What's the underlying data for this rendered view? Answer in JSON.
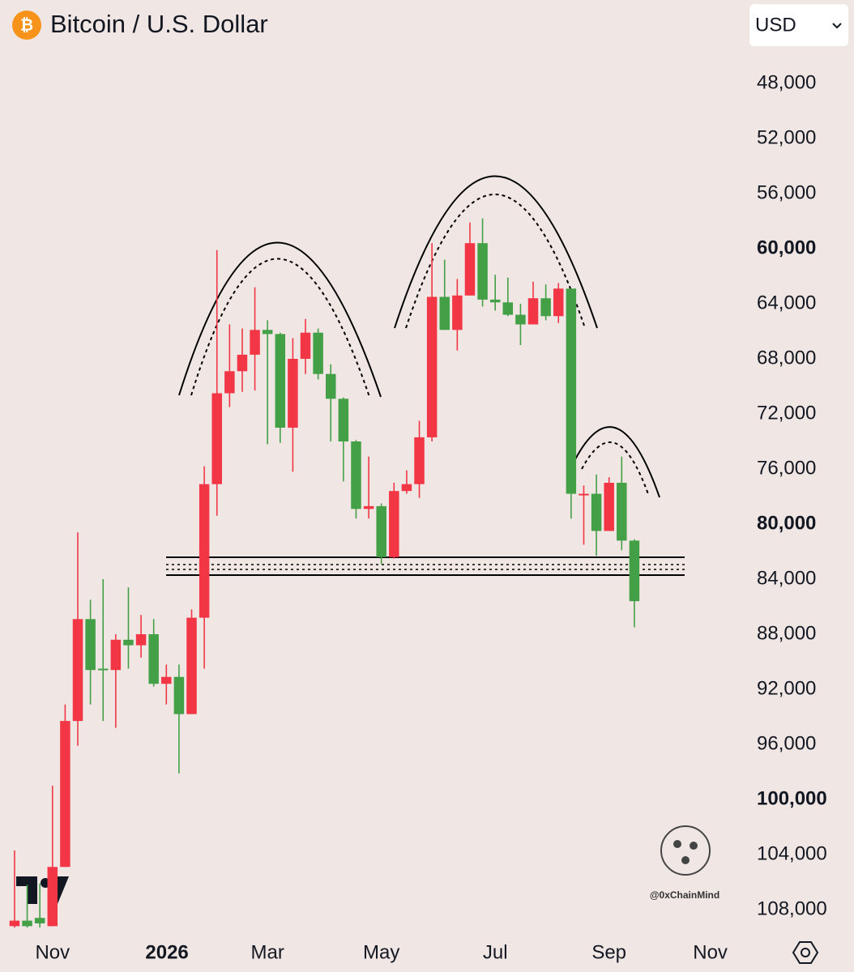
{
  "chart_data": {
    "type": "candlestick",
    "title": "Bitcoin / U.S. Dollar",
    "currency": "USD",
    "watermark": "@0xChainMind",
    "up_color": "#43a047",
    "down_color": "#f23645",
    "open": [
      109200,
      108800,
      108600,
      109200,
      104900,
      94300,
      86900,
      90500,
      90600,
      88400,
      88800,
      88000,
      91600,
      91100,
      93800,
      86800,
      77100,
      70500,
      68900,
      67700,
      65900,
      66200,
      73000,
      68000,
      66100,
      69100,
      70900,
      74000,
      78900,
      78700,
      82400,
      77600,
      77100,
      73700,
      63500,
      65900,
      63400,
      59600,
      63700,
      63900,
      64800,
      65500,
      63600,
      64900,
      62900,
      77900,
      77800,
      80500,
      77000,
      81200
    ],
    "high": [
      109300,
      109300,
      109300,
      109200,
      104900,
      96100,
      93100,
      94300,
      94800,
      90500,
      89700,
      91800,
      93100,
      98100,
      93800,
      90500,
      79400,
      71500,
      70400,
      70300,
      74200,
      74100,
      76200,
      69100,
      69500,
      74000,
      76900,
      79600,
      79600,
      82900,
      82500,
      77800,
      78100,
      74000,
      65900,
      67400,
      63400,
      64200,
      64500,
      64900,
      67000,
      65500,
      65200,
      65400,
      79600,
      81500,
      82300,
      80500,
      81900,
      87500
    ],
    "low": [
      103700,
      106200,
      106100,
      99000,
      93100,
      80600,
      85500,
      84000,
      88000,
      84600,
      86600,
      86900,
      90200,
      90200,
      86200,
      75800,
      60100,
      65500,
      65800,
      62800,
      65200,
      66100,
      66500,
      65100,
      65800,
      68400,
      70800,
      73900,
      75100,
      78500,
      77000,
      76100,
      72500,
      59600,
      60800,
      62200,
      58100,
      57800,
      61900,
      62100,
      64000,
      62400,
      62600,
      62500,
      62900,
      77200,
      76400,
      76600,
      75100,
      81100
    ],
    "close": [
      108800,
      109200,
      109000,
      104900,
      94300,
      86900,
      90600,
      90600,
      88400,
      88800,
      88000,
      91600,
      91100,
      93800,
      86800,
      77100,
      70500,
      68900,
      67700,
      65900,
      66200,
      73000,
      68000,
      66100,
      69100,
      70900,
      74000,
      78900,
      78700,
      82400,
      77600,
      77100,
      73700,
      63500,
      65900,
      63400,
      59600,
      63700,
      63900,
      64800,
      65500,
      63600,
      64900,
      62900,
      77800,
      77800,
      80500,
      77000,
      81200,
      85600
    ],
    "xlim": [
      -1.15,
      56.5
    ],
    "xticks": [
      {
        "value": 3.0,
        "label": "Nov"
      },
      {
        "value": 12.05,
        "label": "2026",
        "bold": true
      },
      {
        "value": 20.0,
        "label": "Mar"
      },
      {
        "value": 29.0,
        "label": "May"
      },
      {
        "value": 38.0,
        "label": "Jul"
      },
      {
        "value": 47.0,
        "label": "Sep"
      },
      {
        "value": 55.0,
        "label": "Nov"
      }
    ],
    "ylim": [
      110000,
      45000
    ],
    "yticks": [
      {
        "value": 48000,
        "label": "48,000"
      },
      {
        "value": 52000,
        "label": "52,000"
      },
      {
        "value": 56000,
        "label": "56,000"
      },
      {
        "value": 60000,
        "label": "60,000",
        "bold": true
      },
      {
        "value": 64000,
        "label": "64,000"
      },
      {
        "value": 68000,
        "label": "68,000"
      },
      {
        "value": 72000,
        "label": "72,000"
      },
      {
        "value": 76000,
        "label": "76,000"
      },
      {
        "value": 80000,
        "label": "80,000",
        "bold": true
      },
      {
        "value": 84000,
        "label": "84,000"
      },
      {
        "value": 88000,
        "label": "88,000"
      },
      {
        "value": 92000,
        "label": "92,000"
      },
      {
        "value": 96000,
        "label": "96,000"
      },
      {
        "value": 100000,
        "label": "100,000",
        "bold": true
      },
      {
        "value": 104000,
        "label": "104,000"
      },
      {
        "value": 108000,
        "label": "108,000"
      }
    ]
  }
}
